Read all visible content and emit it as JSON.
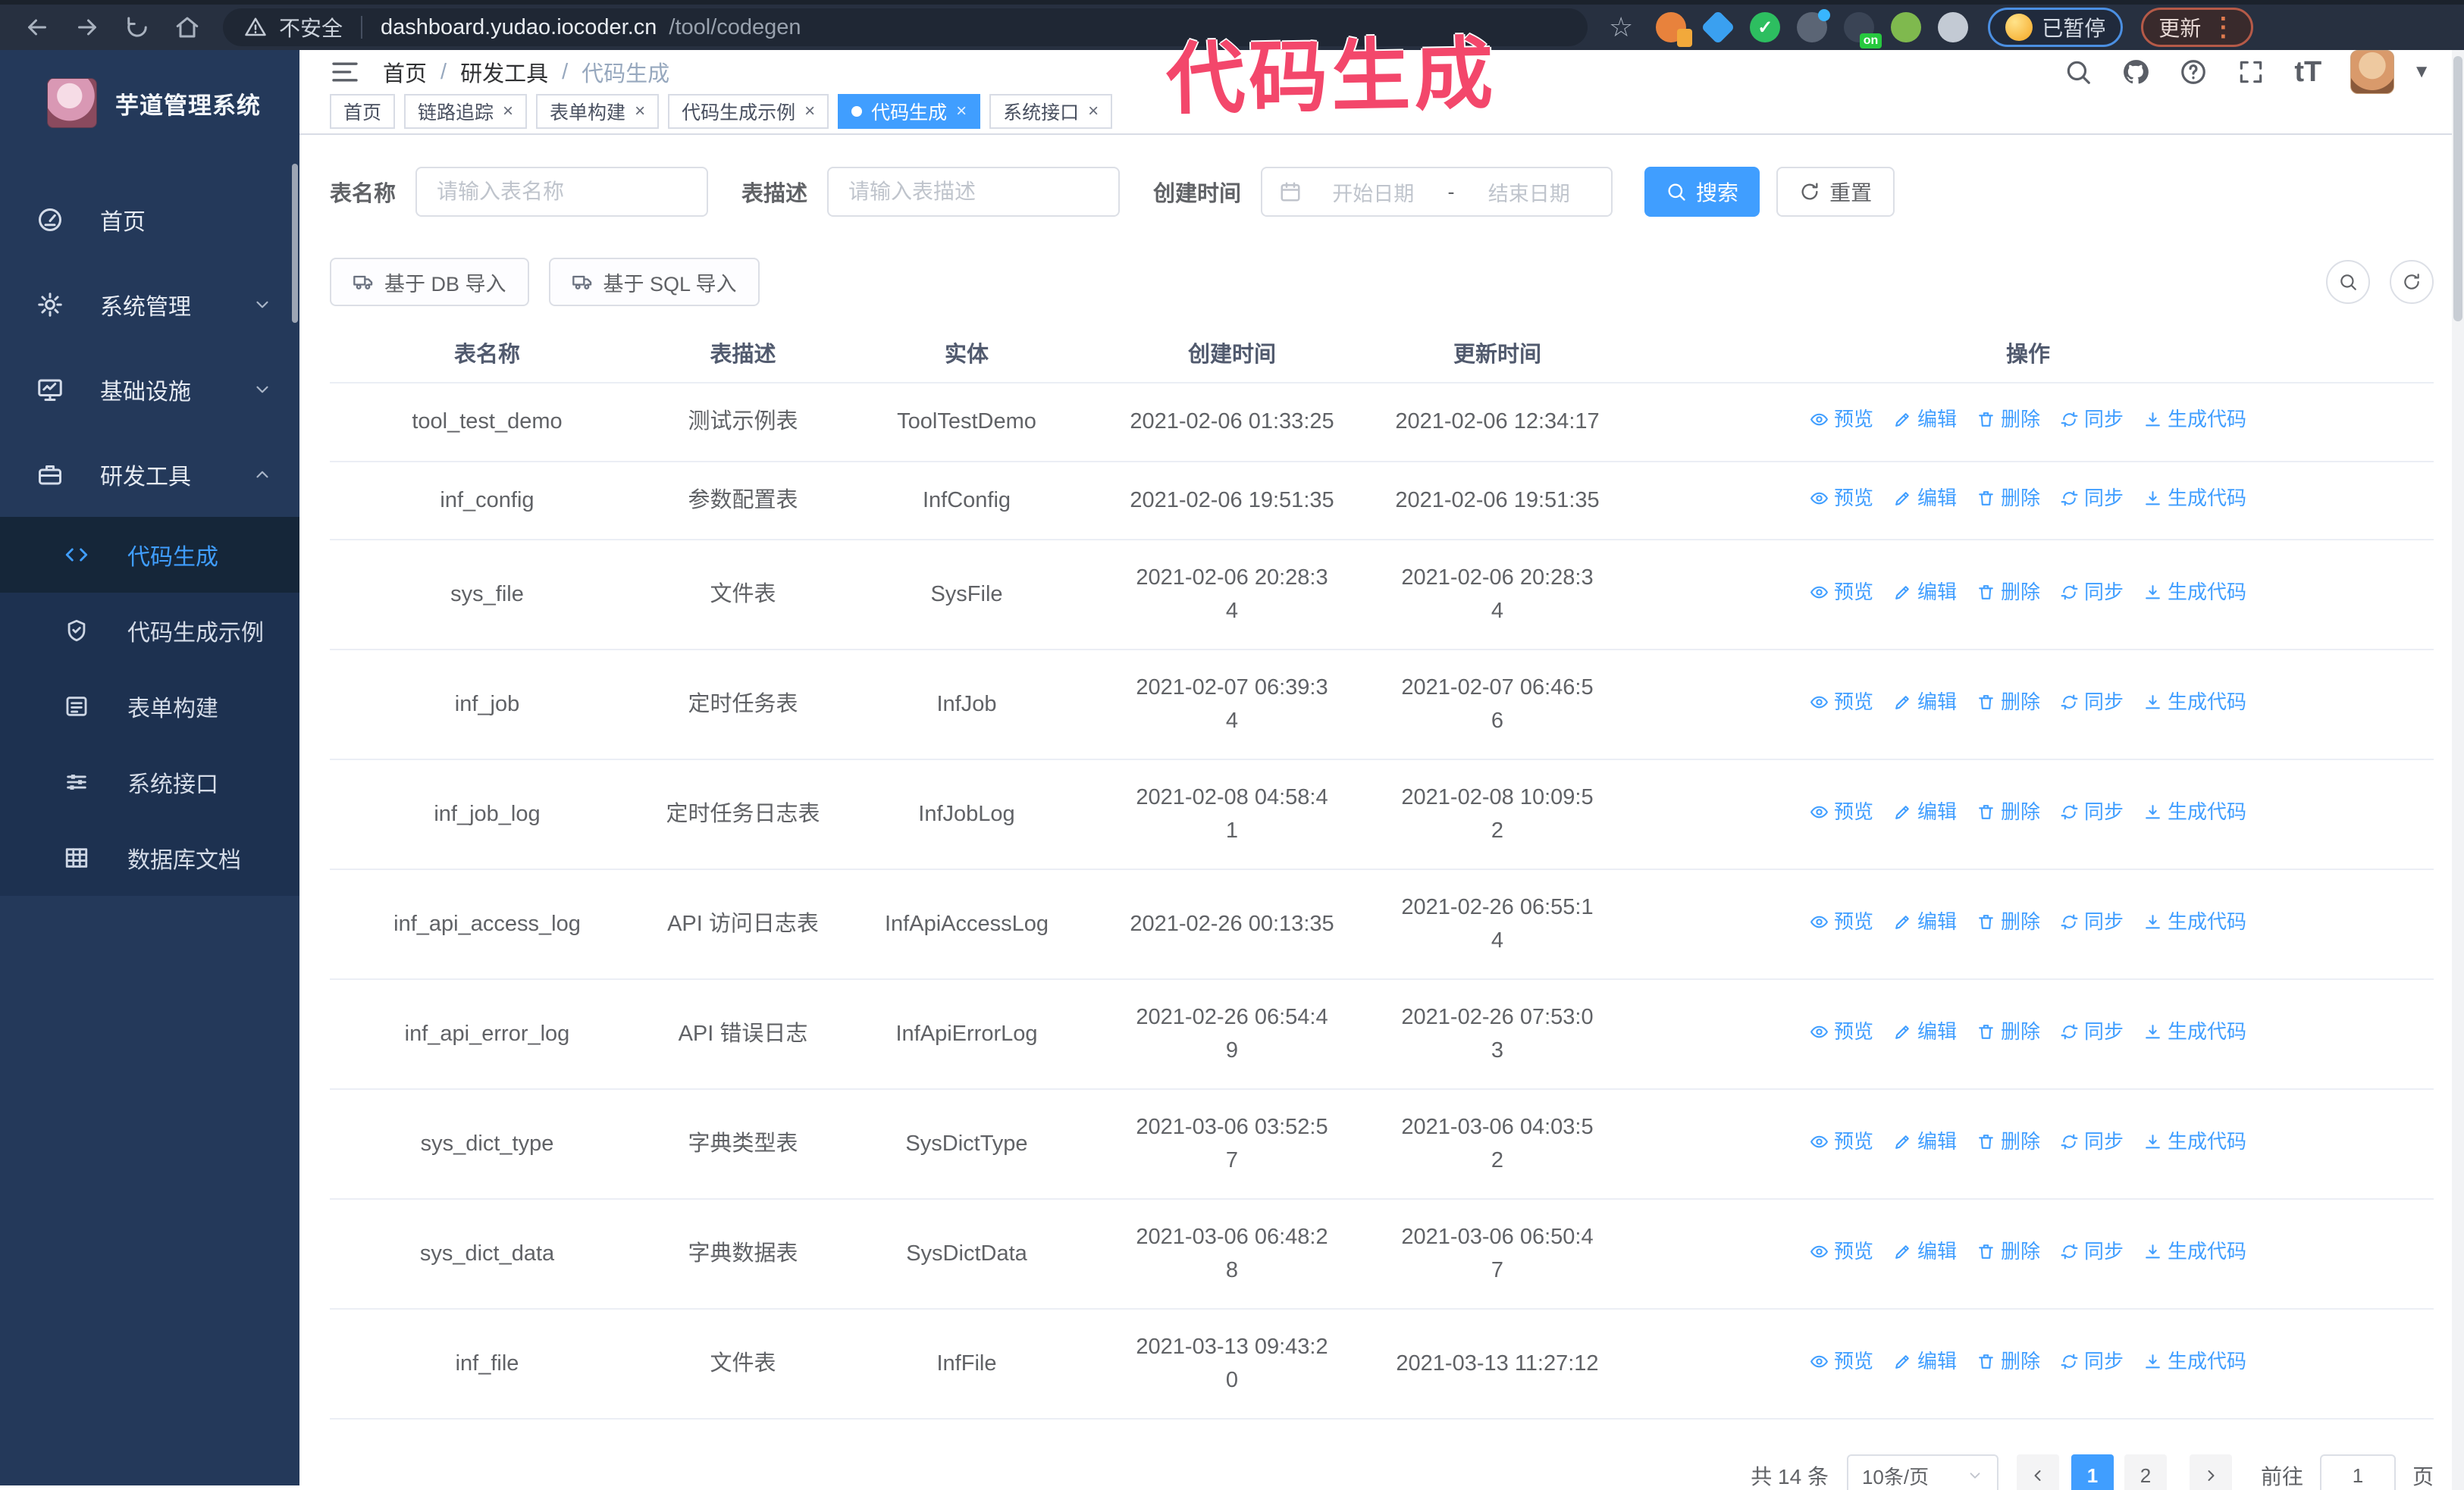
{
  "browser": {
    "security_label": "不安全",
    "url_host": "dashboard.yudao.iocoder.cn",
    "url_path": "/tool/codegen",
    "paused_label": "已暂停",
    "update_label": "更新",
    "extensions": [
      {
        "name": "ext-orange-app",
        "color": "#e8823c",
        "sub": "#f2a93b"
      },
      {
        "name": "ext-blue-gem",
        "color": "#3aa0f0",
        "shape": "diamond"
      },
      {
        "name": "ext-green-check",
        "color": "#2dbe60",
        "glyph": "✓"
      },
      {
        "name": "ext-grid-drop",
        "color": "#5b6575",
        "dot": "#38b6ff"
      },
      {
        "name": "ext-dark-on",
        "color": "#3a4455",
        "badge": "on"
      },
      {
        "name": "ext-green-pet",
        "color": "#7fb94e"
      },
      {
        "name": "ext-puzzle",
        "color": "#c3cad4"
      }
    ]
  },
  "annotation": {
    "text": "代码生成"
  },
  "sidebar": {
    "title": "芋道管理系统",
    "items": [
      {
        "label": "首页",
        "icon": "dashboard",
        "chevron": ""
      },
      {
        "label": "系统管理",
        "icon": "gear",
        "chevron": "down"
      },
      {
        "label": "基础设施",
        "icon": "monitor",
        "chevron": "down"
      },
      {
        "label": "研发工具",
        "icon": "briefcase",
        "chevron": "up"
      }
    ],
    "subitems": [
      {
        "label": "代码生成",
        "icon": "code",
        "active": true
      },
      {
        "label": "代码生成示例",
        "icon": "shield",
        "active": false
      },
      {
        "label": "表单构建",
        "icon": "form",
        "active": false
      },
      {
        "label": "系统接口",
        "icon": "sliders",
        "active": false
      },
      {
        "label": "数据库文档",
        "icon": "dbtable",
        "active": false
      }
    ]
  },
  "header": {
    "breadcrumb": [
      "首页",
      "研发工具",
      "代码生成"
    ],
    "separator": "/"
  },
  "tabs": [
    {
      "label": "首页",
      "closable": false,
      "active": false
    },
    {
      "label": "链路追踪",
      "closable": true,
      "active": false
    },
    {
      "label": "表单构建",
      "closable": true,
      "active": false
    },
    {
      "label": "代码生成示例",
      "closable": true,
      "active": false
    },
    {
      "label": "代码生成",
      "closable": true,
      "active": true
    },
    {
      "label": "系统接口",
      "closable": true,
      "active": false
    }
  ],
  "filters": {
    "table_name_label": "表名称",
    "table_name_placeholder": "请输入表名称",
    "table_desc_label": "表描述",
    "table_desc_placeholder": "请输入表描述",
    "create_time_label": "创建时间",
    "start_placeholder": "开始日期",
    "range_separator": "-",
    "end_placeholder": "结束日期",
    "search_label": "搜索",
    "reset_label": "重置"
  },
  "toolbar": {
    "import_db_label": "基于 DB 导入",
    "import_sql_label": "基于 SQL 导入"
  },
  "table": {
    "headers": [
      "表名称",
      "表描述",
      "实体",
      "创建时间",
      "更新时间",
      "操作"
    ],
    "actions": [
      {
        "label": "预览",
        "icon": "eye"
      },
      {
        "label": "编辑",
        "icon": "edit"
      },
      {
        "label": "删除",
        "icon": "trash"
      },
      {
        "label": "同步",
        "icon": "sync"
      },
      {
        "label": "生成代码",
        "icon": "download"
      }
    ],
    "rows": [
      {
        "name": "tool_test_demo",
        "desc": "测试示例表",
        "entity": "ToolTestDemo",
        "created": "2021-02-06 01:33:25",
        "created_wrap": false,
        "updated": "2021-02-06 12:34:17",
        "updated_wrap": false
      },
      {
        "name": "inf_config",
        "desc": "参数配置表",
        "entity": "InfConfig",
        "created": "2021-02-06 19:51:35",
        "created_wrap": false,
        "updated": "2021-02-06 19:51:35",
        "updated_wrap": false
      },
      {
        "name": "sys_file",
        "desc": "文件表",
        "entity": "SysFile",
        "created": "2021-02-06 20:28:34",
        "created_wrap": true,
        "updated": "2021-02-06 20:28:34",
        "updated_wrap": true
      },
      {
        "name": "inf_job",
        "desc": "定时任务表",
        "entity": "InfJob",
        "created": "2021-02-07 06:39:34",
        "created_wrap": true,
        "updated": "2021-02-07 06:46:56",
        "updated_wrap": true
      },
      {
        "name": "inf_job_log",
        "desc": "定时任务日志表",
        "entity": "InfJobLog",
        "created": "2021-02-08 04:58:41",
        "created_wrap": true,
        "updated": "2021-02-08 10:09:52",
        "updated_wrap": true
      },
      {
        "name": "inf_api_access_log",
        "desc": "API 访问日志表",
        "entity": "InfApiAccessLog",
        "created": "2021-02-26 00:13:35",
        "created_wrap": false,
        "updated": "2021-02-26 06:55:14",
        "updated_wrap": true
      },
      {
        "name": "inf_api_error_log",
        "desc": "API 错误日志",
        "entity": "InfApiErrorLog",
        "created": "2021-02-26 06:54:49",
        "created_wrap": true,
        "updated": "2021-02-26 07:53:03",
        "updated_wrap": true
      },
      {
        "name": "sys_dict_type",
        "desc": "字典类型表",
        "entity": "SysDictType",
        "created": "2021-03-06 03:52:57",
        "created_wrap": true,
        "updated": "2021-03-06 04:03:52",
        "updated_wrap": true
      },
      {
        "name": "sys_dict_data",
        "desc": "字典数据表",
        "entity": "SysDictData",
        "created": "2021-03-06 06:48:28",
        "created_wrap": true,
        "updated": "2021-03-06 06:50:47",
        "updated_wrap": true
      },
      {
        "name": "inf_file",
        "desc": "文件表",
        "entity": "InfFile",
        "created": "2021-03-13 09:43:20",
        "created_wrap": true,
        "updated": "2021-03-13 11:27:12",
        "updated_wrap": false
      }
    ]
  },
  "pagination": {
    "total_label": "共 14 条",
    "page_size": "10条/页",
    "pages": [
      "1",
      "2"
    ],
    "active_page": "1",
    "goto_label": "前往",
    "goto_value": "1",
    "page_suffix": "页"
  },
  "colors": {
    "accent": "#409eff",
    "annotation": "#f3476b",
    "sidebar_bg": "#24395a",
    "chrome_bg": "#273040"
  }
}
